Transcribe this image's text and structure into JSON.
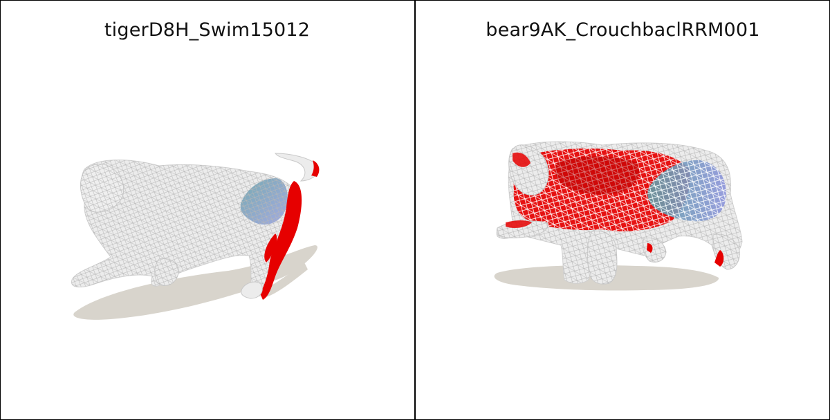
{
  "panels": [
    {
      "title": "tigerD8H_Swim15012",
      "subject": "tiger-mesh"
    },
    {
      "title": "bear9AK_CrouchbaclRRM001",
      "subject": "bear-mesh"
    }
  ],
  "colors": {
    "mesh_base": "#e6e6e6",
    "wire": "#bdbdbd",
    "highlight_red": "#e60000",
    "highlight_blue": "#8a93d6",
    "highlight_teal": "#5f9ea6",
    "shadow": "#d8d4cc"
  }
}
